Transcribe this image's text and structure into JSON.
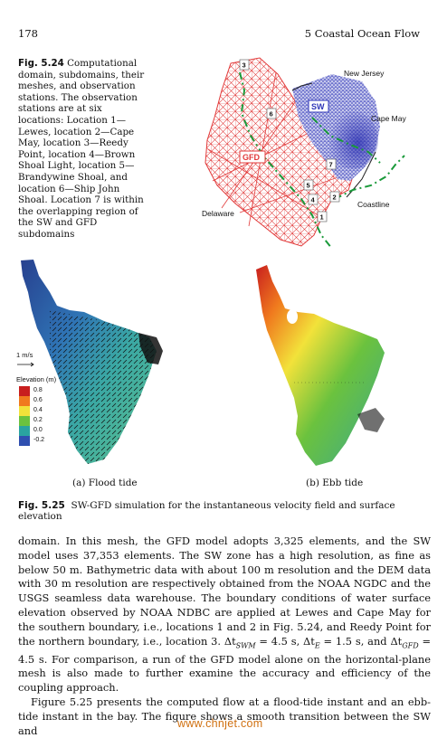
{
  "header": {
    "page_number": "178",
    "chapter": "5   Coastal Ocean Flow"
  },
  "fig24": {
    "label": "Fig. 5.24",
    "caption": "Computational domain, subdomains, their meshes, and observation stations. The observation stations are at six locations: Location 1—Lewes, location 2—Cape May, location 3—Reedy Point, location 4—Brown Shoal Light, location 5—Brandywine Shoal, and location 6—Ship John Shoal. Location 7 is within the overlapping region of the SW and GFD subdomains",
    "map_labels": {
      "new_jersey": "New Jersey",
      "cape_may": "Cape May",
      "delaware": "Delaware",
      "coastline": "Coastline",
      "sw": "SW",
      "gfd": "GFD"
    },
    "stations": [
      "1",
      "2",
      "3",
      "4",
      "5",
      "6",
      "7"
    ],
    "colors": {
      "gfd_mesh": "#e23a3a",
      "sw_mesh": "#2f35b8",
      "coastline": "#1a9a3a"
    }
  },
  "fig25": {
    "scale_label": "1 m/s",
    "legend_title": "Elevation (m)",
    "legend_ticks": [
      "0.8",
      "0.6",
      "0.4",
      "0.2",
      "0.0",
      "-0.2"
    ],
    "legend_colors": [
      "#c81e1e",
      "#f07a1e",
      "#f2e23a",
      "#6bc23e",
      "#2aa3a0",
      "#2f4fb0"
    ],
    "subcaption_a": "(a) Flood tide",
    "subcaption_b": "(b) Ebb tide",
    "label": "Fig. 5.25",
    "caption": "SW-GFD simulation for the instantaneous velocity field and surface elevation"
  },
  "body": {
    "p1": "domain. In this mesh, the GFD model adopts 3,325 elements, and the SW model uses 37,353 elements. The SW zone has a high resolution, as fine as below 50 m. Bathymetric data with about 100 m resolution and the DEM data with 30 m resolution are respectively obtained from the NOAA NGDC and the USGS seamless data warehouse. The boundary conditions of water surface elevation observed by NOAA NDBC are applied at Lewes and Cape May for the southern boundary, i.e., locations 1 and 2 in Fig. 5.24, and Reedy Point for the northern boundary, i.e., location 3. Δt",
    "p1_sub1": "SWM",
    "p1_mid1": " = 4.5 s, Δt",
    "p1_sub2": "E",
    "p1_mid2": " = 1.5 s, and Δt",
    "p1_sub3": "GFD",
    "p1_end": " = 4.5 s. For comparison, a run of the GFD model alone on the horizontal-plane mesh is also made to further examine the accuracy and efficiency of the coupling approach.",
    "p2": "Figure 5.25 presents the computed flow at a flood-tide instant and an ebb-tide instant in the bay. The figure shows a smooth transition between the SW and"
  },
  "watermark": "www.chnjet.com"
}
